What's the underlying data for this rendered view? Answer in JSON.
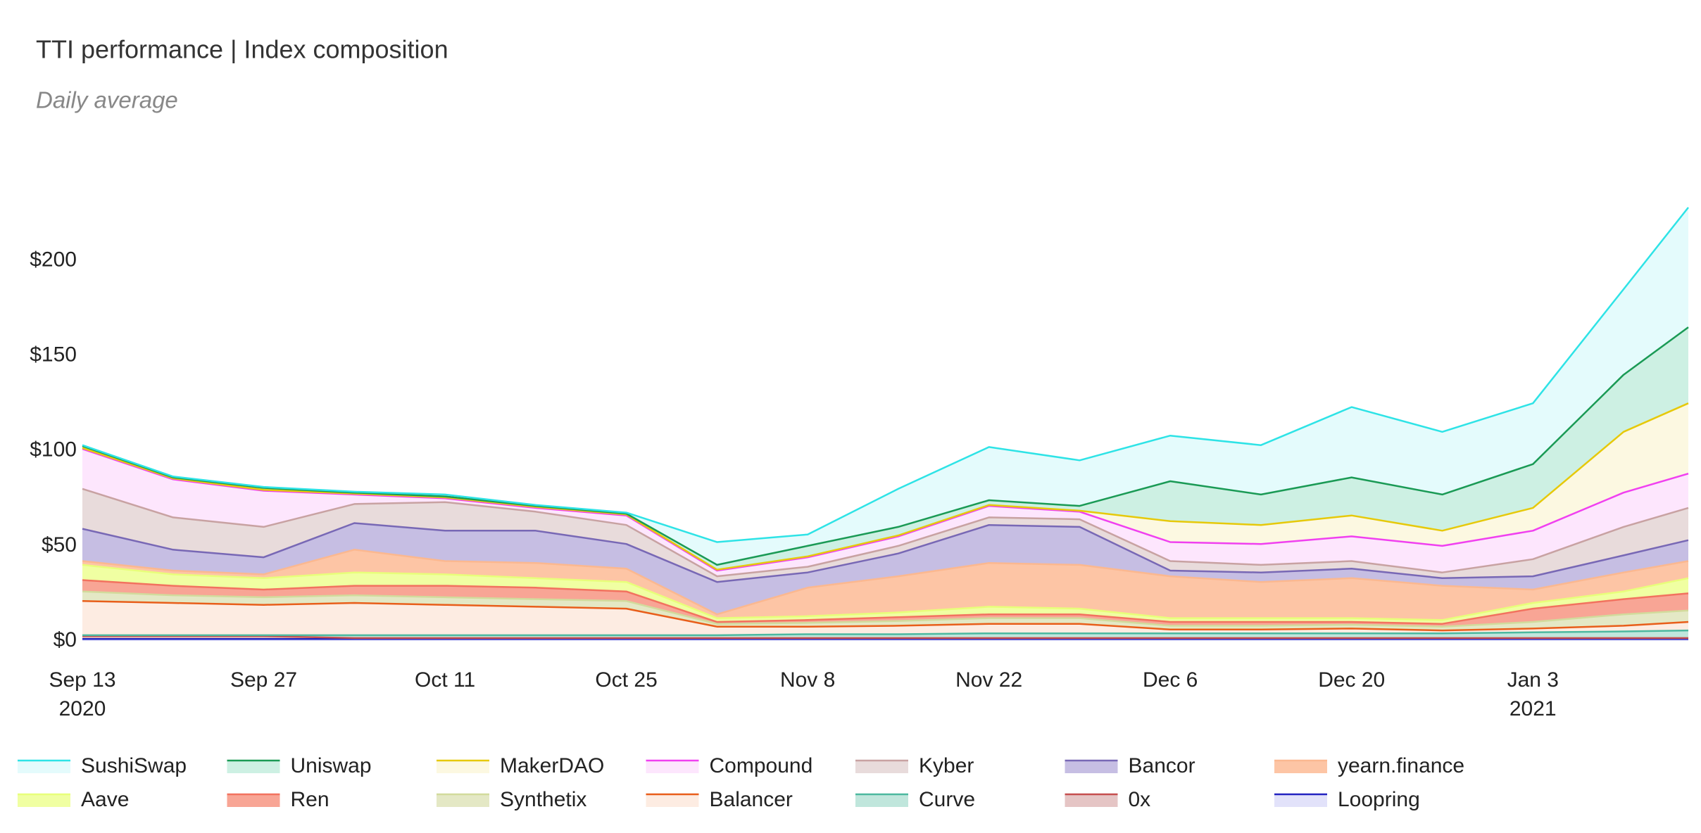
{
  "chart_data": {
    "type": "stacked-area",
    "title": "TTI performance | Index composition",
    "subtitle": "Daily average",
    "x": [
      "2020-09-13",
      "2020-09-20",
      "2020-09-27",
      "2020-10-04",
      "2020-10-11",
      "2020-10-18",
      "2020-10-25",
      "2020-11-01",
      "2020-11-08",
      "2020-11-15",
      "2020-11-22",
      "2020-11-29",
      "2020-12-06",
      "2020-12-13",
      "2020-12-20",
      "2020-12-27",
      "2021-01-03",
      "2021-01-10",
      "2021-01-15"
    ],
    "xlim": [
      "2020-09-13",
      "2021-01-15"
    ],
    "xticks": [
      {
        "value": "2020-09-13",
        "label": "Sep 13\n2020"
      },
      {
        "value": "2020-09-27",
        "label": "Sep 27"
      },
      {
        "value": "2020-10-11",
        "label": "Oct 11"
      },
      {
        "value": "2020-10-25",
        "label": "Oct 25"
      },
      {
        "value": "2020-11-08",
        "label": "Nov 8"
      },
      {
        "value": "2020-11-22",
        "label": "Nov 22"
      },
      {
        "value": "2020-12-06",
        "label": "Dec 6"
      },
      {
        "value": "2020-12-20",
        "label": "Dec 20"
      },
      {
        "value": "2021-01-03",
        "label": "Jan 3\n2021"
      }
    ],
    "ylim": [
      0,
      235
    ],
    "yticks": [
      {
        "value": 0,
        "label": "$0"
      },
      {
        "value": 50,
        "label": "$50"
      },
      {
        "value": 100,
        "label": "$100"
      },
      {
        "value": 150,
        "label": "$150"
      },
      {
        "value": 200,
        "label": "$200"
      }
    ],
    "grid": false,
    "legend": "bottom",
    "series": [
      {
        "name": "SushiSwap",
        "color": "#2ee3e6",
        "fill": "#e4fbfc",
        "values": [
          0.5,
          0.5,
          0.5,
          0.5,
          1,
          0.5,
          0.5,
          12,
          6,
          20,
          28,
          24,
          24,
          26,
          37,
          33,
          32,
          45,
          63
        ]
      },
      {
        "name": "Uniswap",
        "color": "#1a9a55",
        "fill": "#cdf0e3",
        "values": [
          1,
          0.5,
          1,
          0.5,
          0.5,
          0.5,
          0.5,
          2.5,
          5.5,
          4.5,
          2.5,
          2.5,
          21,
          16,
          20,
          19,
          23,
          30,
          40
        ]
      },
      {
        "name": "MakerDAO",
        "color": "#e6c90a",
        "fill": "#fcf8e1",
        "values": [
          0.5,
          0.5,
          0.5,
          0.5,
          0.5,
          0.5,
          0.5,
          0.5,
          0.5,
          0.5,
          0.5,
          0.5,
          11,
          10,
          11,
          8,
          12,
          32,
          37
        ]
      },
      {
        "name": "Compound",
        "color": "#f040f0",
        "fill": "#fde6fd",
        "values": [
          21,
          20,
          19,
          5,
          2,
          2,
          5,
          3,
          5,
          5,
          6,
          4,
          10,
          11,
          13,
          14,
          15,
          18,
          18
        ]
      },
      {
        "name": "Kyber",
        "color": "#c8a2a2",
        "fill": "#e8dbdb",
        "values": [
          21,
          17,
          16,
          10,
          15,
          10,
          10,
          3,
          3,
          4,
          4,
          4,
          5,
          4,
          4,
          3,
          9,
          15,
          17
        ]
      },
      {
        "name": "Bancor",
        "color": "#7868b5",
        "fill": "#c6bee3",
        "values": [
          17,
          11,
          9,
          14,
          16,
          17,
          13,
          17,
          8,
          12,
          20,
          20,
          3,
          5,
          5,
          4,
          7,
          9,
          11
        ]
      },
      {
        "name": "yearn.finance",
        "color": "#fbb890",
        "fill": "#fdc5a5",
        "values": [
          2,
          2,
          2,
          12,
          7,
          8,
          7,
          2,
          15,
          19,
          23,
          23,
          22,
          19,
          21,
          18,
          7,
          10,
          9
        ]
      },
      {
        "name": "Aave",
        "color": "#e8ff7a",
        "fill": "#f0ffa2",
        "values": [
          8,
          6,
          6,
          7,
          6,
          5,
          5,
          2,
          2,
          2.5,
          4,
          3,
          2,
          2,
          2,
          2,
          3,
          4,
          8
        ]
      },
      {
        "name": "Ren",
        "color": "#f2725f",
        "fill": "#f8a595",
        "values": [
          6,
          5,
          4,
          5,
          6,
          6,
          5,
          1,
          1.5,
          2,
          2,
          2,
          2,
          2,
          1.5,
          1.5,
          7,
          8,
          9
        ]
      },
      {
        "name": "Synthetix",
        "color": "#d2db9c",
        "fill": "#e4e8c5",
        "values": [
          5,
          4,
          4,
          4,
          4,
          4,
          4,
          1.5,
          2,
          2.5,
          3,
          3,
          2,
          2,
          2,
          2,
          3.5,
          6,
          6
        ]
      },
      {
        "name": "Balancer",
        "color": "#e85e1a",
        "fill": "#fdece2",
        "values": [
          18,
          17,
          16,
          17,
          16,
          15,
          14,
          4.5,
          4,
          4.5,
          5,
          5,
          2,
          2,
          2.5,
          1.5,
          2,
          3,
          4.5
        ]
      },
      {
        "name": "Curve",
        "color": "#4cb89f",
        "fill": "#c0e6dc",
        "values": [
          0.5,
          0.5,
          0.5,
          1.5,
          1.5,
          1.5,
          1.5,
          1.5,
          2,
          2,
          2.5,
          2.5,
          2.5,
          2.5,
          2.5,
          2.5,
          3,
          3.5,
          4
        ]
      },
      {
        "name": "0x",
        "color": "#c64f4f",
        "fill": "#e5c5c5",
        "values": [
          1.5,
          1.5,
          1.5,
          0.5,
          0.5,
          0.5,
          0.5,
          0.5,
          0.5,
          0.5,
          0.5,
          0.5,
          0.5,
          0.5,
          0.5,
          0.5,
          0.5,
          0.5,
          0.5
        ]
      },
      {
        "name": "Loopring",
        "color": "#2222c0",
        "fill": "#e2e2fa",
        "values": [
          1,
          1,
          1,
          1,
          1,
          1,
          1,
          1,
          1,
          1,
          1,
          1,
          1,
          1,
          1,
          1,
          1,
          1,
          1
        ]
      }
    ]
  }
}
